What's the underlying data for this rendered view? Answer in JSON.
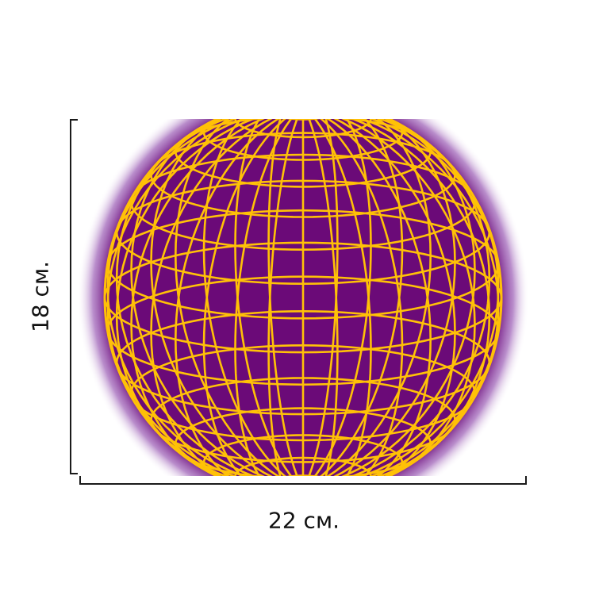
{
  "dimensions": {
    "height_label": "18 см.",
    "width_label": "22 см."
  },
  "colors": {
    "background": "#ffffff",
    "sphere_fill": "#6b0a78",
    "glow": "#b58bd0",
    "wireframe": "#ffc107",
    "dimension_line": "#1a1a1a"
  },
  "image": {
    "subject": "wireframe-globe-icon"
  }
}
